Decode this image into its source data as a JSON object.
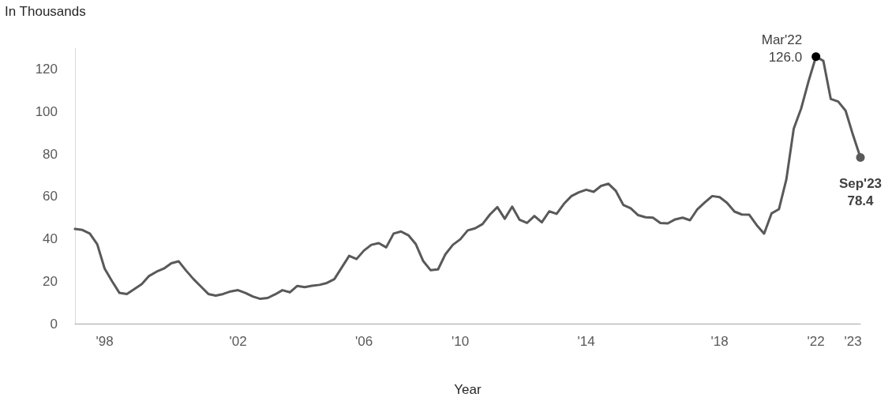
{
  "chart_data": {
    "type": "line",
    "ylabel": "In Thousands",
    "xlabel": "Year",
    "categories": [
      null,
      null,
      null,
      null,
      "'98",
      null,
      null,
      null,
      null,
      null,
      null,
      null,
      null,
      null,
      null,
      null,
      null,
      null,
      null,
      null,
      null,
      null,
      "'02",
      null,
      null,
      null,
      null,
      null,
      null,
      null,
      null,
      null,
      null,
      null,
      null,
      null,
      null,
      null,
      null,
      "'06",
      null,
      null,
      null,
      null,
      null,
      null,
      null,
      null,
      null,
      null,
      null,
      null,
      "'10",
      null,
      null,
      null,
      null,
      null,
      null,
      null,
      null,
      null,
      null,
      null,
      null,
      null,
      null,
      null,
      null,
      "'14",
      null,
      null,
      null,
      null,
      null,
      null,
      null,
      null,
      null,
      null,
      null,
      null,
      null,
      null,
      null,
      null,
      null,
      "'18",
      null,
      null,
      null,
      null,
      null,
      null,
      null,
      null,
      null,
      null,
      null,
      null,
      "'22",
      null,
      null,
      null,
      null,
      "'23",
      null
    ],
    "series": [
      {
        "color": "#595959",
        "values": [
          44.7,
          44.2,
          42.5,
          37.5,
          26,
          20,
          14.5,
          14,
          16.3,
          18.6,
          22.5,
          24.5,
          26,
          28.5,
          29.4,
          25,
          21,
          17.5,
          14,
          13.2,
          14,
          15.2,
          15.8,
          14.5,
          12.8,
          11.7,
          12.1,
          13.8,
          15.8,
          14.8,
          17.8,
          17.2,
          17.9,
          18.3,
          19.2,
          21,
          26.5,
          32,
          30.5,
          34.5,
          37.2,
          38,
          36,
          42.5,
          43.5,
          41.7,
          37.5,
          29.5,
          25.2,
          25.6,
          32.8,
          37.2,
          39.8,
          44,
          45,
          47,
          51.5,
          55,
          49.5,
          55.2,
          49,
          47.5,
          50.8,
          47.8,
          53,
          51.8,
          56.6,
          60.2,
          62,
          63.2,
          62.2,
          65,
          66,
          62.6,
          56,
          54.4,
          51.2,
          50.2,
          50,
          47.5,
          47.3,
          49.2,
          50,
          48.8,
          54,
          57.2,
          60.2,
          59.7,
          57,
          52.9,
          51.5,
          51.4,
          46.5,
          42.5,
          52,
          54,
          68,
          92,
          101.5,
          114.4,
          126.0,
          124,
          106,
          104.8,
          100.5,
          89,
          78.4
        ],
        "value_labels": [
          null,
          null,
          null,
          null,
          null,
          null,
          null,
          null,
          null,
          null,
          null,
          null,
          null,
          null,
          null,
          null,
          null,
          null,
          null,
          null,
          null,
          null,
          null,
          null,
          null,
          null,
          null,
          null,
          null,
          null,
          null,
          null,
          null,
          null,
          null,
          null,
          null,
          null,
          null,
          null,
          null,
          null,
          null,
          null,
          null,
          null,
          null,
          null,
          null,
          null,
          null,
          null,
          null,
          null,
          null,
          null,
          null,
          null,
          null,
          null,
          null,
          null,
          null,
          null,
          null,
          null,
          null,
          null,
          null,
          null,
          null,
          null,
          null,
          null,
          null,
          null,
          null,
          null,
          null,
          null,
          null,
          null,
          null,
          null,
          null,
          null,
          null,
          null,
          null,
          null,
          null,
          null,
          null,
          null,
          null,
          null,
          null,
          null,
          null,
          null,
          "Mar'22\n126.0",
          null,
          null,
          null,
          null,
          null,
          "Sep'23\n78.4"
        ]
      }
    ],
    "ylim": [
      0,
      130
    ],
    "yticks": [
      0,
      20,
      40,
      60,
      80,
      100,
      120
    ],
    "grid": false
  }
}
